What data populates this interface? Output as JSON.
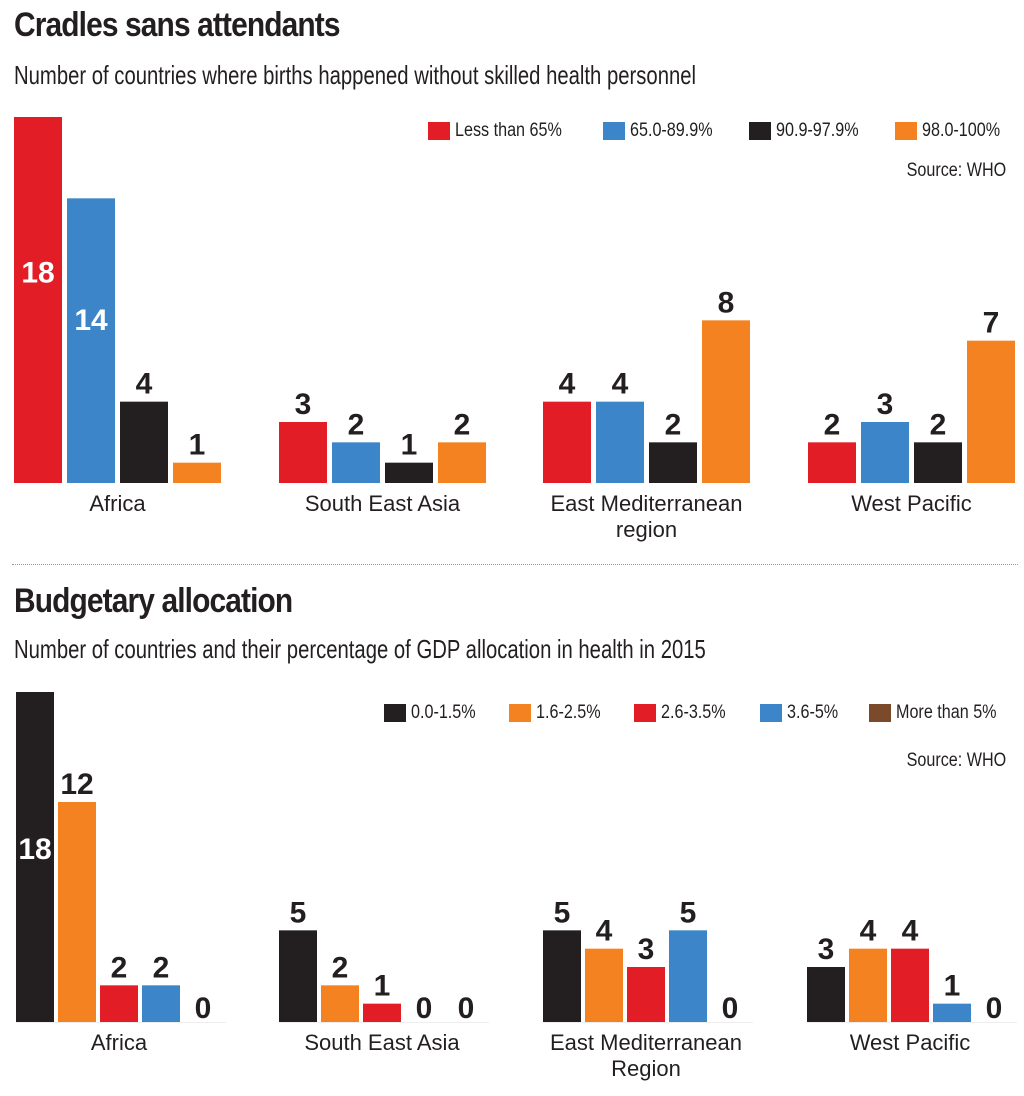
{
  "chart_data": [
    {
      "type": "bar",
      "title": "Cradles sans attendants",
      "subtitle": "Number of countries where births happened without skilled health personnel",
      "source": "Source: WHO",
      "categories": [
        [
          "Africa"
        ],
        [
          "South East Asia"
        ],
        [
          "East Mediterranean",
          "region"
        ],
        [
          "West Pacific"
        ]
      ],
      "series": [
        {
          "name": "Less than 65%",
          "color": "#e21d26",
          "values": [
            18,
            3,
            4,
            2
          ]
        },
        {
          "name": "65.0-89.9%",
          "color": "#3c85c8",
          "values": [
            14,
            2,
            4,
            3
          ]
        },
        {
          "name": "90.9-97.9%",
          "color": "#231f20",
          "values": [
            4,
            1,
            2,
            2
          ]
        },
        {
          "name": "98.0-100%",
          "color": "#f58220",
          "values": [
            1,
            2,
            8,
            7
          ]
        }
      ],
      "inside_labels": [
        {
          "category": 0,
          "series": 0
        },
        {
          "category": 0,
          "series": 1
        }
      ],
      "xlabel": "",
      "ylabel": "Number of countries",
      "ylim": [
        0,
        18
      ],
      "grid": false,
      "legend": "top-right"
    },
    {
      "type": "bar",
      "title": "Budgetary allocation",
      "subtitle": "Number of countries and their percentage of GDP allocation in health in 2015",
      "source": "Source: WHO",
      "categories": [
        [
          "Africa"
        ],
        [
          "South East Asia"
        ],
        [
          "East Mediterranean",
          "Region"
        ],
        [
          "West Pacific"
        ]
      ],
      "series": [
        {
          "name": "0.0-1.5%",
          "color": "#231f20",
          "values": [
            18,
            5,
            5,
            3
          ]
        },
        {
          "name": "1.6-2.5%",
          "color": "#f58220",
          "values": [
            12,
            2,
            4,
            4
          ]
        },
        {
          "name": "2.6-3.5%",
          "color": "#e21d26",
          "values": [
            2,
            1,
            3,
            4
          ]
        },
        {
          "name": "3.6-5%",
          "color": "#3c85c8",
          "values": [
            2,
            0,
            5,
            1
          ]
        },
        {
          "name": "More than 5%",
          "color": "#7b4a2a",
          "values": [
            0,
            0,
            0,
            0
          ]
        }
      ],
      "inside_labels": [
        {
          "category": 0,
          "series": 0
        }
      ],
      "xlabel": "",
      "ylabel": "Number of countries",
      "ylim": [
        0,
        18
      ],
      "grid": false,
      "legend": "top-right"
    }
  ]
}
